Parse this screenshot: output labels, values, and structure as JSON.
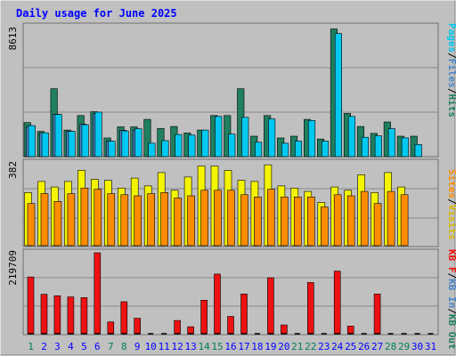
{
  "chart_data": [
    {
      "type": "bar",
      "title": "Daily usage for June 2025",
      "categories": [
        "1",
        "2",
        "3",
        "4",
        "5",
        "6",
        "7",
        "8",
        "9",
        "10",
        "11",
        "12",
        "13",
        "14",
        "15",
        "16",
        "17",
        "18",
        "19",
        "20",
        "21",
        "22",
        "23",
        "24",
        "25",
        "26",
        "27",
        "28",
        "29",
        "30",
        "31"
      ],
      "weekend_days": [
        "1",
        "7",
        "8",
        "14",
        "15",
        "21",
        "22",
        "28",
        "29"
      ],
      "ymax_label": "8613",
      "ymax": 8613,
      "series": [
        {
          "name": "Hits",
          "color": "#1f7f5f",
          "values": [
            2230,
            1650,
            4440,
            1740,
            2690,
            2940,
            1220,
            1950,
            1950,
            2440,
            1840,
            1970,
            1550,
            1740,
            2690,
            2690,
            4440,
            1340,
            2690,
            1220,
            1340,
            2440,
            1150,
            8350,
            2830,
            1970,
            1520,
            2270,
            1340,
            1340,
            0
          ]
        },
        {
          "name": "Files",
          "color": "#4a86c8",
          "values": [
            1970,
            1560,
            2770,
            1660,
            2130,
            2810,
            1010,
            1720,
            1740,
            0,
            0,
            0,
            0,
            0,
            0,
            0,
            0,
            0,
            0,
            0,
            0,
            0,
            0,
            0,
            0,
            0,
            0,
            0,
            0,
            0,
            0
          ]
        },
        {
          "name": "Pages",
          "color": "#00c8f0",
          "values": [
            2030,
            1560,
            2760,
            1650,
            2090,
            2910,
            1010,
            1680,
            1830,
            880,
            1050,
            1450,
            1410,
            1740,
            2630,
            1480,
            2570,
            940,
            2460,
            880,
            1010,
            2370,
            1010,
            8050,
            2630,
            1270,
            1360,
            1830,
            1230,
            790,
            0
          ]
        }
      ]
    },
    {
      "type": "bar",
      "ymax_label": "382",
      "ymax": 382,
      "series": [
        {
          "name": "Visits",
          "color": "#f4f400",
          "values": [
            240,
            290,
            265,
            290,
            340,
            300,
            295,
            260,
            305,
            270,
            330,
            250,
            310,
            360,
            360,
            340,
            295,
            290,
            365,
            270,
            260,
            245,
            195,
            265,
            250,
            320,
            240,
            330,
            265,
            0,
            0
          ]
        },
        {
          "name": "Sites",
          "color": "#ff8c00",
          "values": [
            190,
            235,
            200,
            235,
            260,
            255,
            235,
            230,
            225,
            235,
            240,
            215,
            225,
            250,
            250,
            250,
            230,
            220,
            255,
            220,
            220,
            220,
            175,
            230,
            225,
            245,
            190,
            245,
            230,
            0,
            0
          ]
        }
      ]
    },
    {
      "type": "bar",
      "ymax_label": "219709",
      "ymax": 219709,
      "series": [
        {
          "name": "KB F",
          "color": "#ee1111",
          "values": [
            154000,
            107000,
            103000,
            100000,
            98000,
            219709,
            32000,
            87000,
            42000,
            0,
            0,
            36000,
            19000,
            91000,
            162000,
            47000,
            108000,
            0,
            152000,
            24000,
            0,
            139000,
            0,
            170000,
            21000,
            0,
            108000,
            0,
            0,
            0,
            0
          ]
        },
        {
          "name": "KB In",
          "color": "#4a86c8",
          "values": [
            0,
            0,
            0,
            0,
            0,
            0,
            0,
            0,
            0,
            0,
            0,
            0,
            0,
            0,
            0,
            0,
            0,
            0,
            0,
            0,
            0,
            0,
            0,
            0,
            0,
            0,
            0,
            0,
            0,
            0,
            0
          ]
        },
        {
          "name": "KB Out",
          "color": "#1f7f5f",
          "values": [
            0,
            0,
            0,
            0,
            0,
            0,
            0,
            0,
            0,
            0,
            0,
            0,
            0,
            0,
            0,
            0,
            0,
            0,
            0,
            0,
            0,
            0,
            0,
            0,
            0,
            0,
            0,
            0,
            0,
            0,
            0
          ]
        }
      ]
    }
  ],
  "colors": {
    "frame": "#c0c0c0",
    "plot": "#c0c0c0",
    "title": "#0000ff",
    "weekend_label": "#00805c",
    "weekday_label": "#0000ff",
    "baseline": "#000000"
  }
}
